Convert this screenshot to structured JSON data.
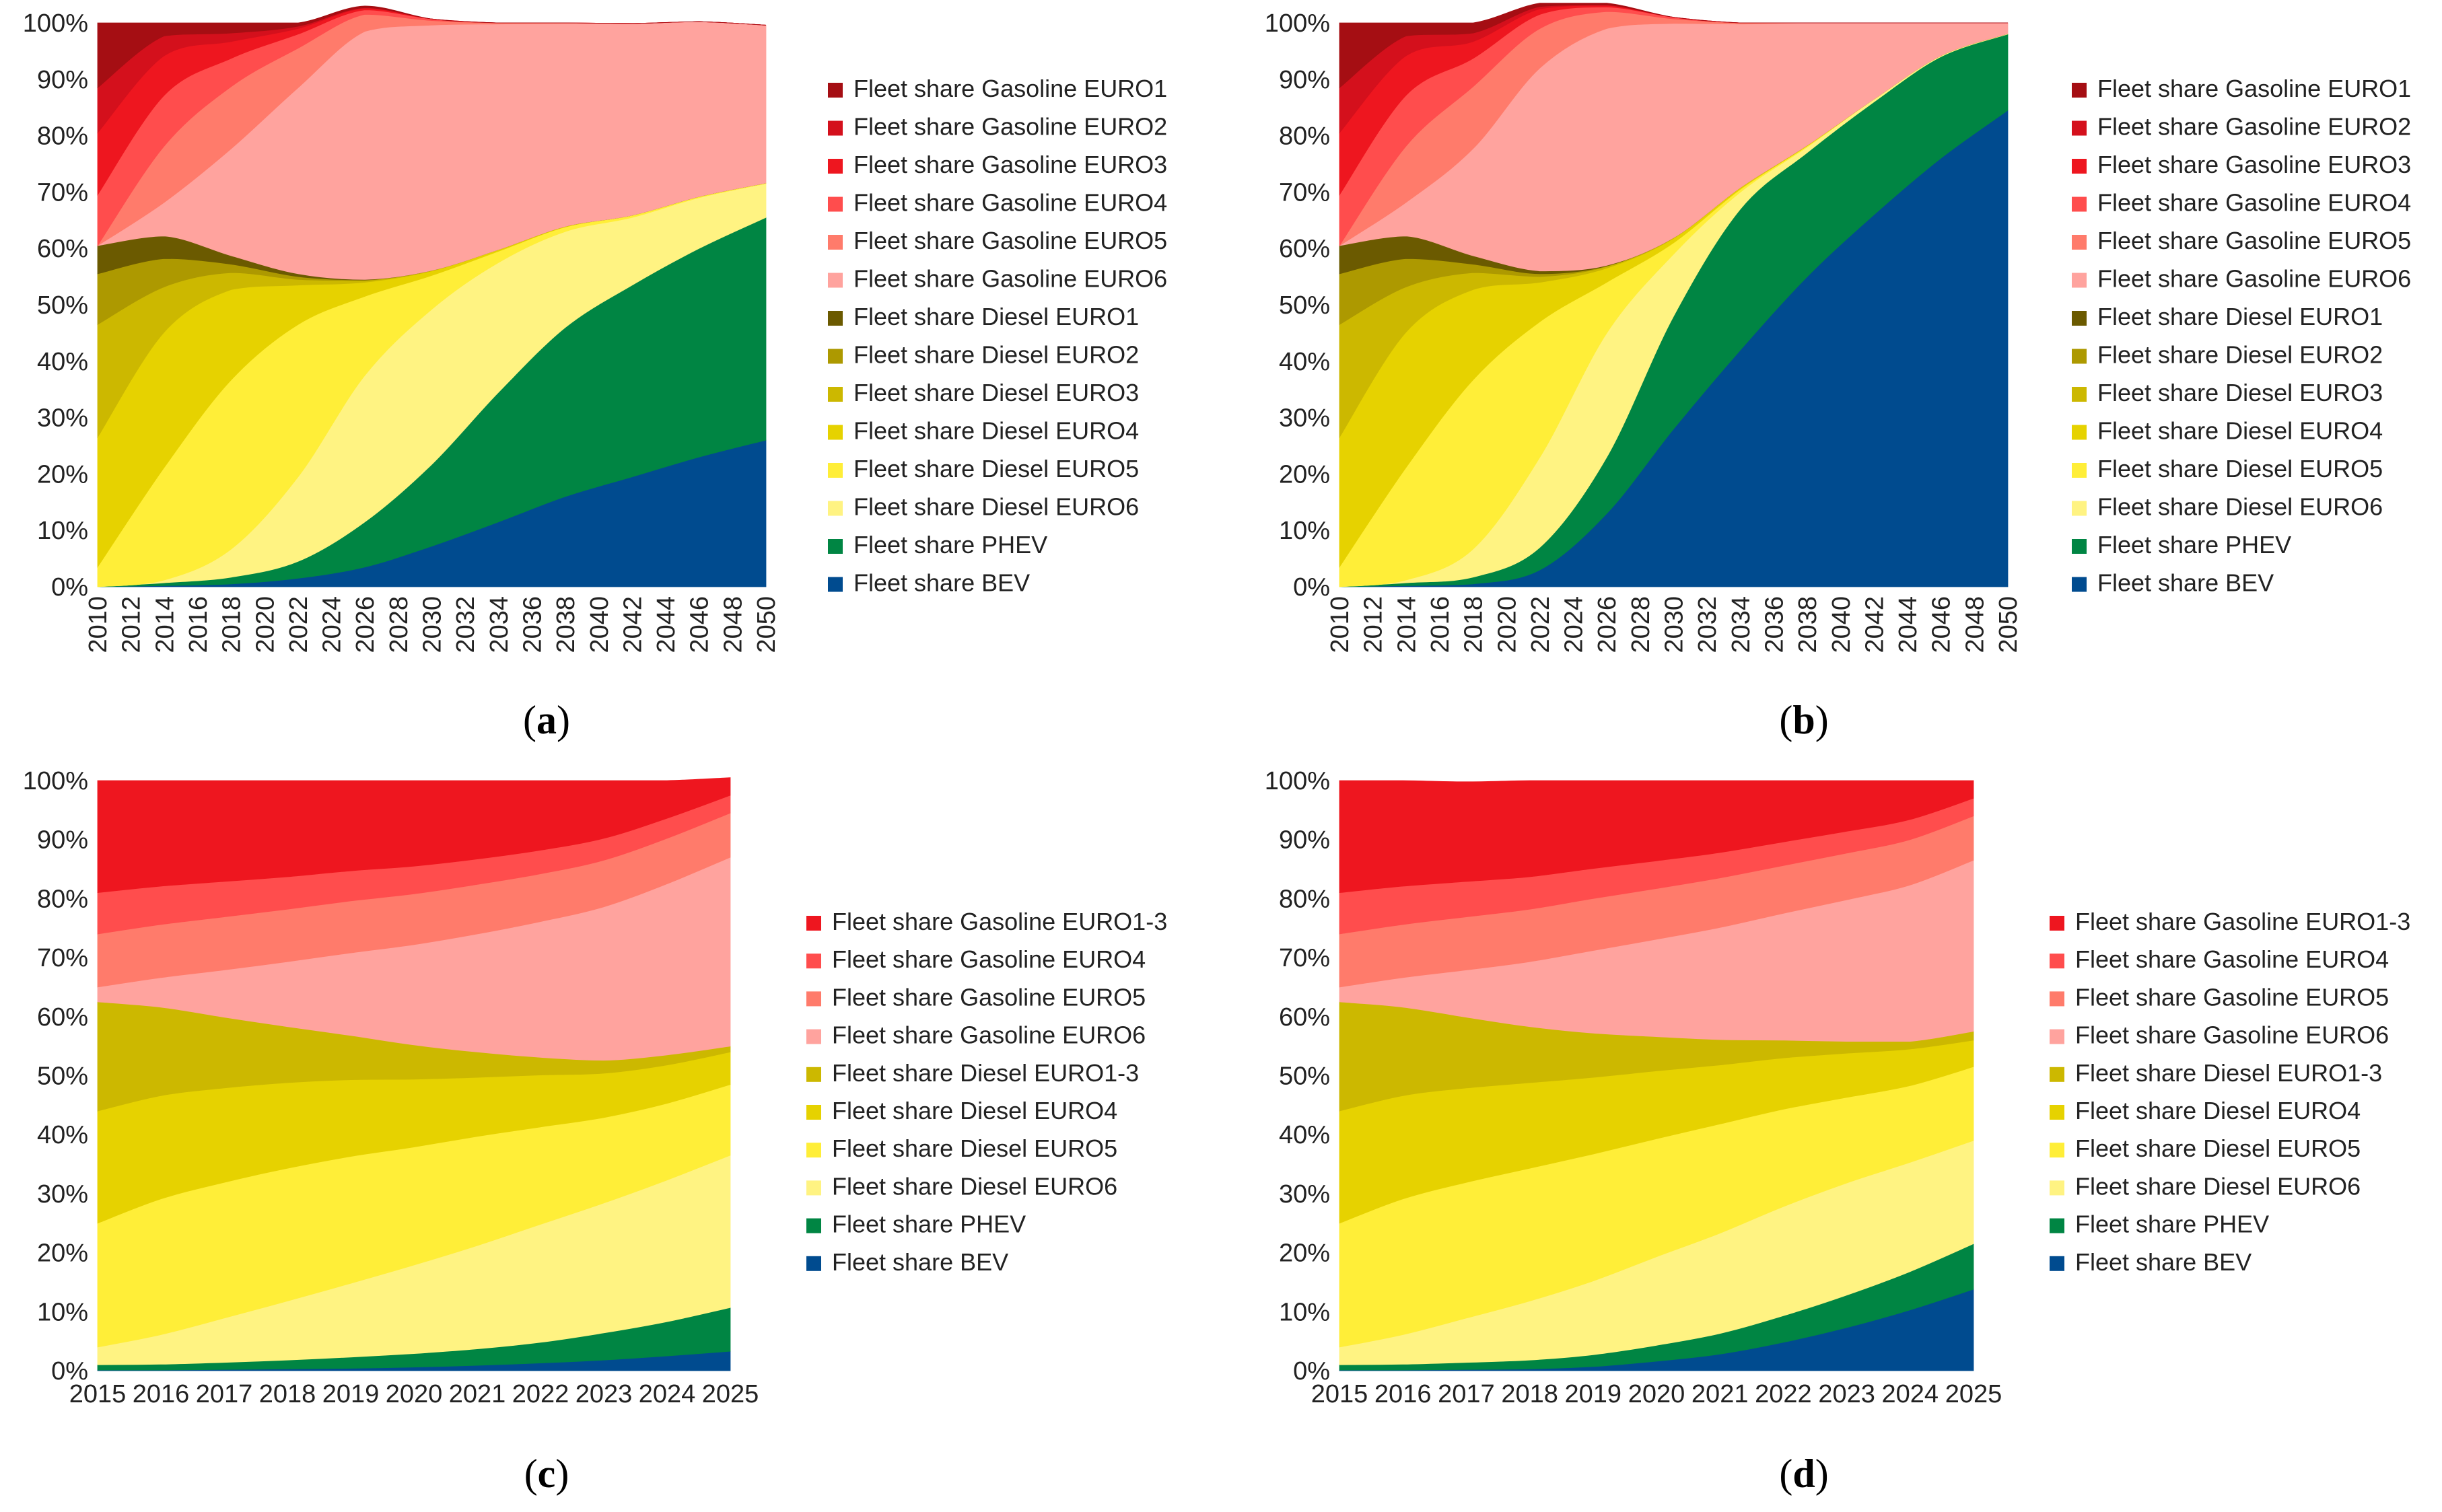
{
  "chart_data": [
    {
      "panel_label": "a",
      "type": "area",
      "stacked": true,
      "x": [
        2010,
        2014,
        2018,
        2022,
        2026,
        2030,
        2034,
        2038,
        2042,
        2046,
        2050
      ],
      "x_tick_labels": [
        "2010",
        "2012",
        "2014",
        "2016",
        "2018",
        "2020",
        "2022",
        "2024",
        "2026",
        "2028",
        "2030",
        "2032",
        "2034",
        "2036",
        "2038",
        "2040",
        "2042",
        "2044",
        "2046",
        "2048",
        "2050"
      ],
      "y_tick_labels": [
        "0%",
        "10%",
        "20%",
        "30%",
        "40%",
        "50%",
        "60%",
        "70%",
        "80%",
        "90%",
        "100%"
      ],
      "ylim": [
        0,
        100
      ],
      "legend_position": "right",
      "series": [
        {
          "name": "Fleet share BEV",
          "color": "#004b8f",
          "values": [
            0,
            0.2,
            0.5,
            1.5,
            3.5,
            7.2,
            11.5,
            16,
            19.5,
            23,
            26
          ]
        },
        {
          "name": "Fleet share PHEV",
          "color": "#008543",
          "values": [
            0,
            0.5,
            1.2,
            3,
            8,
            14.5,
            23,
            30,
            34,
            37,
            39.5
          ]
        },
        {
          "name": "Fleet share Diesel EURO6",
          "color": "#fff382",
          "values": [
            0,
            0.5,
            5,
            15,
            26,
            27.5,
            23,
            17,
            12,
            9,
            6
          ]
        },
        {
          "name": "Fleet share Diesel EURO5",
          "color": "#ffee38",
          "values": [
            3.5,
            20,
            30,
            27,
            14,
            6,
            2,
            0.8,
            0.4,
            0.2,
            0.1
          ]
        },
        {
          "name": "Fleet share Diesel EURO4",
          "color": "#e6d200",
          "values": [
            23,
            24,
            16,
            7,
            2.5,
            0.8,
            0.3,
            0.1,
            0,
            0,
            0
          ]
        },
        {
          "name": "Fleet share Diesel EURO3",
          "color": "#ccb800",
          "values": [
            20,
            8,
            3,
            1,
            0.3,
            0.1,
            0,
            0,
            0,
            0,
            0
          ]
        },
        {
          "name": "Fleet share Diesel EURO2",
          "color": "#ad9900",
          "values": [
            9,
            5,
            1.5,
            0.5,
            0.1,
            0,
            0,
            0,
            0,
            0,
            0
          ]
        },
        {
          "name": "Fleet share Diesel EURO1",
          "color": "#6b5a00",
          "values": [
            5,
            4,
            1.5,
            0.5,
            0.1,
            0,
            0,
            0,
            0,
            0,
            0
          ]
        },
        {
          "name": "Fleet share Gasoline EURO6",
          "color": "#ffa39e",
          "values": [
            0,
            6,
            19,
            33,
            44,
            43.5,
            40,
            36,
            34,
            31,
            28
          ]
        },
        {
          "name": "Fleet share Gasoline EURO5",
          "color": "#ff7b6b",
          "values": [
            0,
            10,
            11,
            7,
            3,
            0.8,
            0.2,
            0.1,
            0,
            0,
            0
          ]
        },
        {
          "name": "Fleet share Gasoline EURO4",
          "color": "#ff4d4d",
          "values": [
            9,
            9,
            5,
            2.5,
            0.8,
            0.3,
            0,
            0,
            0,
            0,
            0
          ]
        },
        {
          "name": "Fleet share Gasoline EURO3",
          "color": "#ee161f",
          "values": [
            11,
            7,
            3,
            1,
            0.3,
            0,
            0,
            0,
            0,
            0,
            0
          ]
        },
        {
          "name": "Fleet share Gasoline EURO2",
          "color": "#d4101c",
          "values": [
            8,
            3.5,
            1.5,
            0.4,
            0.1,
            0,
            0,
            0,
            0,
            0,
            0
          ]
        },
        {
          "name": "Fleet share Gasoline EURO1",
          "color": "#a50e13",
          "values": [
            11.5,
            2.3,
            1.8,
            0.6,
            0.3,
            0,
            0,
            0,
            0,
            0,
            0
          ]
        }
      ]
    },
    {
      "panel_label": "b",
      "type": "area",
      "stacked": true,
      "x": [
        2010,
        2014,
        2018,
        2022,
        2026,
        2030,
        2034,
        2038,
        2042,
        2046,
        2050
      ],
      "x_tick_labels": [
        "2010",
        "2012",
        "2014",
        "2016",
        "2018",
        "2020",
        "2022",
        "2024",
        "2026",
        "2028",
        "2030",
        "2032",
        "2034",
        "2036",
        "2038",
        "2040",
        "2042",
        "2044",
        "2046",
        "2048",
        "2050"
      ],
      "y_tick_labels": [
        "0%",
        "10%",
        "20%",
        "30%",
        "40%",
        "50%",
        "60%",
        "70%",
        "80%",
        "90%",
        "100%"
      ],
      "ylim": [
        0,
        100
      ],
      "legend_position": "right",
      "series": [
        {
          "name": "Fleet share BEV",
          "color": "#004b8f",
          "values": [
            0,
            0.2,
            0.5,
            3,
            13,
            28,
            42,
            55,
            66,
            76,
            84.5
          ]
        },
        {
          "name": "Fleet share PHEV",
          "color": "#008543",
          "values": [
            0,
            0.5,
            1.2,
            4,
            10,
            20,
            25,
            22,
            20,
            18,
            13.5
          ]
        },
        {
          "name": "Fleet share Diesel EURO6",
          "color": "#fff382",
          "values": [
            0,
            0.5,
            5,
            16,
            22,
            11,
            3,
            1,
            0.5,
            0.2,
            0.1
          ]
        },
        {
          "name": "Fleet share Diesel EURO5",
          "color": "#ffee38",
          "values": [
            3.5,
            20,
            30,
            24,
            9,
            2,
            0.5,
            0.2,
            0,
            0,
            0
          ]
        },
        {
          "name": "Fleet share Diesel EURO4",
          "color": "#e6d200",
          "values": [
            23,
            24,
            16,
            7,
            2.5,
            0.8,
            0.3,
            0.1,
            0,
            0,
            0
          ]
        },
        {
          "name": "Fleet share Diesel EURO3",
          "color": "#ccb800",
          "values": [
            20,
            8,
            3,
            1,
            0.3,
            0.1,
            0,
            0,
            0,
            0,
            0
          ]
        },
        {
          "name": "Fleet share Diesel EURO2",
          "color": "#ad9900",
          "values": [
            9,
            5,
            1.5,
            0.5,
            0.1,
            0,
            0,
            0,
            0,
            0,
            0
          ]
        },
        {
          "name": "Fleet share Diesel EURO1",
          "color": "#6b5a00",
          "values": [
            5,
            4,
            1.5,
            0.5,
            0.1,
            0,
            0,
            0,
            0,
            0,
            0
          ]
        },
        {
          "name": "Fleet share Gasoline EURO6",
          "color": "#ffa39e",
          "values": [
            0,
            6,
            19,
            36,
            42,
            38,
            29,
            21.7,
            13.5,
            5.8,
            1.9
          ]
        },
        {
          "name": "Fleet share Gasoline EURO5",
          "color": "#ff7b6b",
          "values": [
            0,
            10,
            11,
            7,
            3,
            0.8,
            0.2,
            0,
            0,
            0,
            0
          ]
        },
        {
          "name": "Fleet share Gasoline EURO4",
          "color": "#ff4d4d",
          "values": [
            9,
            9,
            5,
            2.5,
            0.8,
            0.3,
            0,
            0,
            0,
            0,
            0
          ]
        },
        {
          "name": "Fleet share Gasoline EURO3",
          "color": "#ee161f",
          "values": [
            11,
            7,
            3,
            1,
            0.3,
            0,
            0,
            0,
            0,
            0,
            0
          ]
        },
        {
          "name": "Fleet share Gasoline EURO2",
          "color": "#d4101c",
          "values": [
            8,
            3.5,
            1.5,
            0.4,
            0.1,
            0,
            0,
            0,
            0,
            0,
            0
          ]
        },
        {
          "name": "Fleet share Gasoline EURO1",
          "color": "#a50e13",
          "values": [
            11.5,
            2.3,
            1.8,
            0.6,
            0.3,
            0,
            0,
            0,
            0,
            0,
            0
          ]
        }
      ]
    },
    {
      "panel_label": "c",
      "type": "area",
      "stacked": true,
      "x": [
        2015,
        2016,
        2017,
        2018,
        2019,
        2020,
        2021,
        2022,
        2023,
        2024,
        2025
      ],
      "x_tick_labels": [
        "2015",
        "2016",
        "2017",
        "2018",
        "2019",
        "2020",
        "2021",
        "2022",
        "2023",
        "2024",
        "2025"
      ],
      "y_tick_labels": [
        "0%",
        "10%",
        "20%",
        "30%",
        "40%",
        "50%",
        "60%",
        "70%",
        "80%",
        "90%",
        "100%"
      ],
      "ylim": [
        0,
        100
      ],
      "legend_position": "right",
      "series": [
        {
          "name": "Fleet share BEV",
          "color": "#004b8f",
          "values": [
            0.1,
            0.1,
            0.2,
            0.3,
            0.4,
            0.6,
            0.9,
            1.3,
            1.8,
            2.5,
            3.3
          ]
        },
        {
          "name": "Fleet share PHEV",
          "color": "#008543",
          "values": [
            0.9,
            1,
            1.2,
            1.5,
            1.9,
            2.3,
            2.8,
            3.5,
            4.6,
            5.8,
            7.4
          ]
        },
        {
          "name": "Fleet share Diesel EURO6",
          "color": "#fff382",
          "values": [
            3,
            5,
            7.5,
            10,
            12.5,
            15,
            17.5,
            20,
            22,
            24,
            25.8
          ]
        },
        {
          "name": "Fleet share Diesel EURO5",
          "color": "#ffee38",
          "values": [
            21,
            23,
            23,
            22.5,
            21.5,
            20,
            18.5,
            16.5,
            14.5,
            13,
            12
          ]
        },
        {
          "name": "Fleet share Diesel EURO4",
          "color": "#e6d200",
          "values": [
            19,
            17.5,
            16,
            14.5,
            13,
            11.5,
            10,
            8.8,
            7.5,
            6.5,
            5.5
          ]
        },
        {
          "name": "Fleet share Diesel EURO1-3",
          "color": "#ccb800",
          "values": [
            18.5,
            15,
            12,
            9.5,
            7.5,
            5.8,
            4.3,
            3,
            2.2,
            1.7,
            1
          ]
        },
        {
          "name": "Fleet share Gasoline EURO6",
          "color": "#ffa39e",
          "values": [
            2.5,
            5,
            8,
            11,
            14,
            17,
            20,
            23,
            26,
            29,
            32
          ]
        },
        {
          "name": "Fleet share Gasoline EURO5",
          "color": "#ff7b6b",
          "values": [
            9,
            9,
            9,
            8.9,
            8.8,
            8.6,
            8.4,
            8.1,
            7.9,
            7.7,
            7.5
          ]
        },
        {
          "name": "Fleet share Gasoline EURO4",
          "color": "#ff4d4d",
          "values": [
            7,
            6.5,
            6,
            5.5,
            5.1,
            4.7,
            4.3,
            4,
            3.7,
            3.4,
            3
          ]
        },
        {
          "name": "Fleet share Gasoline EURO1-3",
          "color": "#ee161f",
          "values": [
            19,
            17.9,
            17.1,
            16.3,
            15.3,
            14.5,
            13.3,
            11.8,
            9.8,
            6.4,
            3
          ]
        }
      ]
    },
    {
      "panel_label": "d",
      "type": "area",
      "stacked": true,
      "x": [
        2015,
        2016,
        2017,
        2018,
        2019,
        2020,
        2021,
        2022,
        2023,
        2024,
        2025
      ],
      "x_tick_labels": [
        "2015",
        "2016",
        "2017",
        "2018",
        "2019",
        "2020",
        "2021",
        "2022",
        "2023",
        "2024",
        "2025"
      ],
      "y_tick_labels": [
        "0%",
        "10%",
        "20%",
        "30%",
        "40%",
        "50%",
        "60%",
        "70%",
        "80%",
        "90%",
        "100%"
      ],
      "ylim": [
        0,
        100
      ],
      "legend_position": "right",
      "series": [
        {
          "name": "Fleet share BEV",
          "color": "#004b8f",
          "values": [
            0.1,
            0.1,
            0.2,
            0.3,
            0.7,
            1.6,
            2.8,
            4.8,
            7.3,
            10.3,
            13.8
          ]
        },
        {
          "name": "Fleet share PHEV",
          "color": "#008543",
          "values": [
            0.9,
            1,
            1.2,
            1.5,
            2,
            2.7,
            3.5,
            4.5,
            5.5,
            6.5,
            7.7
          ]
        },
        {
          "name": "Fleet share Diesel EURO6",
          "color": "#fff382",
          "values": [
            3,
            5,
            7.5,
            10,
            12.5,
            15,
            17,
            18.5,
            19,
            18.5,
            17.5
          ]
        },
        {
          "name": "Fleet share Diesel EURO5",
          "color": "#ffee38",
          "values": [
            21,
            23,
            23,
            22.5,
            21.5,
            20,
            18.5,
            16.5,
            14.5,
            13,
            12.5
          ]
        },
        {
          "name": "Fleet share Diesel EURO4",
          "color": "#e6d200",
          "values": [
            19,
            17.5,
            16,
            14.5,
            13,
            11.5,
            10,
            8.7,
            7.5,
            6.2,
            4.5
          ]
        },
        {
          "name": "Fleet share Diesel EURO1-3",
          "color": "#ccb800",
          "values": [
            18.5,
            15,
            12,
            9.5,
            7.5,
            5.8,
            4.3,
            3,
            2,
            1.3,
            1.5
          ]
        },
        {
          "name": "Fleet share Gasoline EURO6",
          "color": "#ffa39e",
          "values": [
            2.5,
            5,
            8,
            11,
            14,
            16.5,
            19,
            21.5,
            24,
            26.5,
            29
          ]
        },
        {
          "name": "Fleet share Gasoline EURO5",
          "color": "#ff7b6b",
          "values": [
            9,
            9,
            9,
            8.9,
            8.8,
            8.6,
            8.4,
            8.1,
            7.9,
            7.7,
            7.5
          ]
        },
        {
          "name": "Fleet share Gasoline EURO4",
          "color": "#ff4d4d",
          "values": [
            7,
            6.5,
            6,
            5.5,
            5.1,
            4.7,
            4.3,
            4,
            3.7,
            3.4,
            3
          ]
        },
        {
          "name": "Fleet share Gasoline EURO1-3",
          "color": "#ee161f",
          "values": [
            19,
            17.9,
            16.9,
            16.3,
            14.9,
            13.6,
            12.2,
            10.4,
            8.6,
            6.6,
            3
          ]
        }
      ]
    }
  ]
}
